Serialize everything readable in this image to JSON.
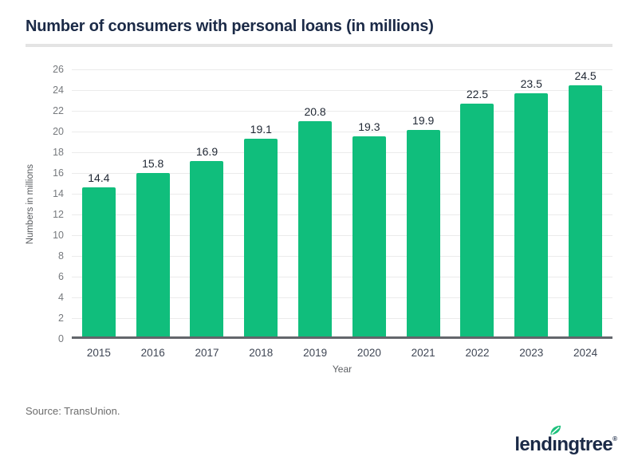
{
  "page": {
    "title": "Number of consumers with personal loans (in millions)"
  },
  "chart_data": {
    "type": "bar",
    "title": "Number of consumers with personal loans (in millions)",
    "categories": [
      "2015",
      "2016",
      "2017",
      "2018",
      "2019",
      "2020",
      "2021",
      "2022",
      "2023",
      "2024"
    ],
    "values": [
      14.4,
      15.8,
      16.9,
      19.1,
      20.8,
      19.3,
      19.9,
      22.5,
      23.5,
      24.5
    ],
    "value_label_decimals": 1,
    "xlabel": "Year",
    "ylabel": "Numbers in millions",
    "ylim": [
      0,
      26
    ],
    "ytick_step": 2,
    "grid": "horizontal",
    "legend": "none",
    "bar_color": "#10BE7C"
  },
  "footer": {
    "source": "Source: TransUnion.",
    "logo": {
      "pre": "lend",
      "i": "ı",
      "post": "ngtree",
      "reg": "®"
    }
  },
  "colors": {
    "title_navy": "#1B2A47",
    "bar_green": "#10BE7C",
    "leaf_green": "#1EC17D",
    "axis_line": "#63666B",
    "gridline": "#EBEBEB",
    "divider": "#E4E4E4",
    "y_tick_text": "#76797D",
    "x_tick_text": "#3F4654",
    "value_text": "#1F2733",
    "source_text": "#6C6C6C"
  }
}
